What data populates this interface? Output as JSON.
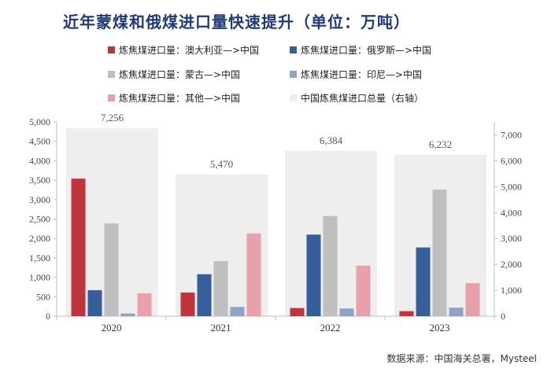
{
  "title": "近年蒙煤和俄煤进口量快速提升（单位：万吨）",
  "source": "数据来源：中国海关总署，Mysteel",
  "chart_data": {
    "type": "bar",
    "categories": [
      "2020",
      "2021",
      "2022",
      "2023"
    ],
    "series": [
      {
        "name": "炼焦煤进口量：澳大利亚—>中国",
        "color": "#c0343c",
        "axis": "left",
        "values": [
          3540,
          610,
          210,
          130
        ]
      },
      {
        "name": "炼焦煤进口量：俄罗斯—>中国",
        "color": "#355e9a",
        "axis": "left",
        "values": [
          670,
          1080,
          2100,
          1770
        ]
      },
      {
        "name": "炼焦煤进口量：蒙古—>中国",
        "color": "#bfbfbf",
        "axis": "left",
        "values": [
          2390,
          1420,
          2580,
          3260
        ]
      },
      {
        "name": "炼焦煤进口量：印尼—>中国",
        "color": "#8fa3c7",
        "axis": "left",
        "values": [
          70,
          240,
          200,
          220
        ]
      },
      {
        "name": "炼焦煤进口量：其他—>中国",
        "color": "#e8a0aa",
        "axis": "left",
        "values": [
          590,
          2130,
          1300,
          850
        ]
      },
      {
        "name": "中国炼焦煤进口总量（右轴）",
        "color": "#eeeeee",
        "axis": "right",
        "values": [
          7256,
          5470,
          6384,
          6232
        ]
      }
    ],
    "total_labels": [
      "7,256",
      "5,470",
      "6,384",
      "6,232"
    ],
    "left_axis": {
      "min": 0,
      "max": 5000,
      "ticks": [
        "0",
        "500",
        "1,000",
        "1,500",
        "2,000",
        "2,500",
        "3,000",
        "3,500",
        "4,000",
        "4,500",
        "5,000"
      ]
    },
    "right_axis": {
      "min": 0,
      "max": 7500,
      "ticks": [
        "0",
        "1,000",
        "2,000",
        "3,000",
        "4,000",
        "5,000",
        "6,000",
        "7,000"
      ]
    }
  }
}
